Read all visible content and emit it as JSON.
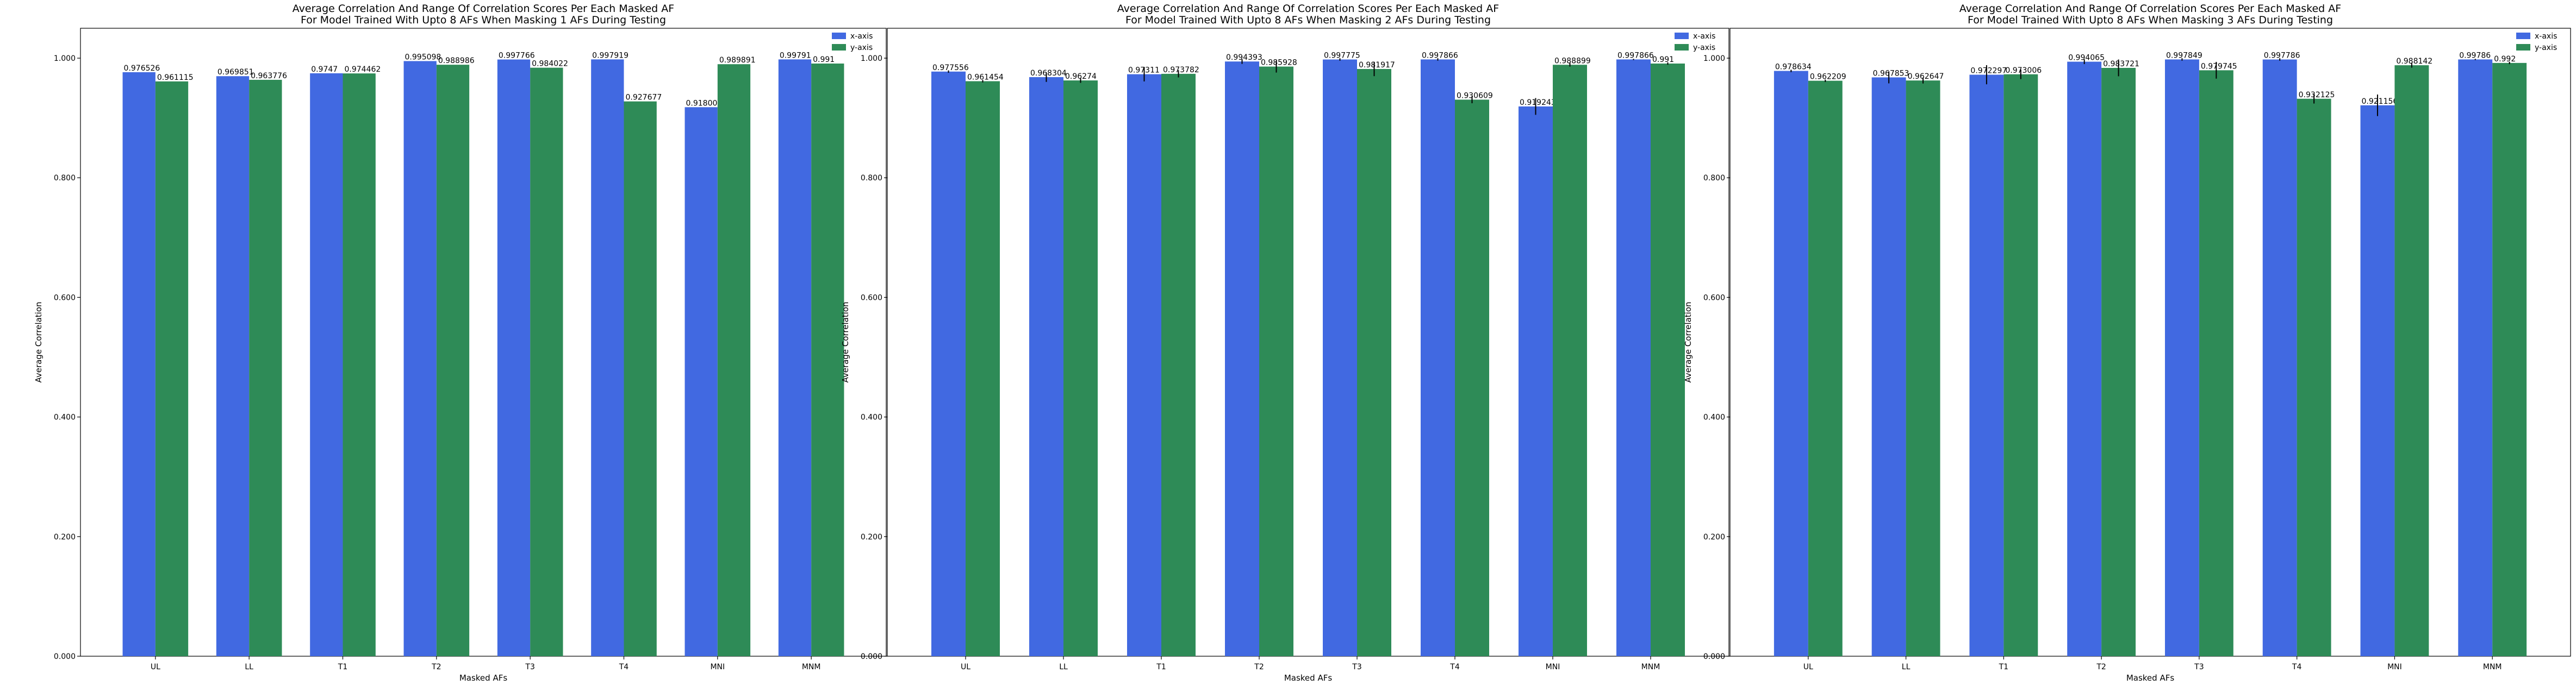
{
  "chart_data": [
    {
      "type": "bar",
      "title": "Average Correlation And Range Of Correlation Scores Per Each Masked AF",
      "subtitle": "For Model Trained With Upto 8 AFs When Masking 1 AFs During Testing",
      "xlabel": "Masked AFs",
      "ylabel": "Average Correlation",
      "ylim": [
        0,
        1.05
      ],
      "yticks": [
        "0.000",
        "0.200",
        "0.400",
        "0.600",
        "0.800",
        "1.000"
      ],
      "categories": [
        "UL",
        "LL",
        "T1",
        "T2",
        "T3",
        "T4",
        "MNI",
        "MNM"
      ],
      "legend": "top-right",
      "grid": false,
      "series": [
        {
          "name": "x-axis",
          "color": "#4169E1",
          "values": [
            0.976526,
            0.969851,
            0.9747,
            0.995098,
            0.997766,
            0.997919,
            0.918004,
            0.99791
          ],
          "labels": [
            "0.976526",
            "0.969851",
            "0.9747",
            "0.995098",
            "0.997766",
            "0.997919",
            "0.918004",
            "0.99791"
          ],
          "errors": [
            0,
            0,
            0,
            0,
            0,
            0,
            0,
            0
          ]
        },
        {
          "name": "y-axis",
          "color": "#2E8B57",
          "values": [
            0.961115,
            0.963776,
            0.974462,
            0.988986,
            0.984022,
            0.927677,
            0.989891,
            0.991
          ],
          "labels": [
            "0.961115",
            "0.963776",
            "0.974462",
            "0.988986",
            "0.984022",
            "0.927677",
            "0.989891",
            "0.991"
          ],
          "errors": [
            0,
            0,
            0,
            0,
            0,
            0,
            0,
            0
          ]
        }
      ]
    },
    {
      "type": "bar",
      "title": "Average Correlation And Range Of Correlation Scores Per Each Masked AF",
      "subtitle": "For Model Trained With Upto 8 AFs When Masking 2 AFs During Testing",
      "xlabel": "Masked AFs",
      "ylabel": "Average Correlation",
      "ylim": [
        0,
        1.05
      ],
      "yticks": [
        "0.000",
        "0.200",
        "0.400",
        "0.600",
        "0.800",
        "1.000"
      ],
      "categories": [
        "UL",
        "LL",
        "T1",
        "T2",
        "T3",
        "T4",
        "MNI",
        "MNM"
      ],
      "legend": "top-right",
      "grid": false,
      "series": [
        {
          "name": "x-axis",
          "color": "#4169E1",
          "values": [
            0.977556,
            0.968304,
            0.97311,
            0.994393,
            0.997775,
            0.997866,
            0.919243,
            0.997866
          ],
          "labels": [
            "0.977556",
            "0.968304",
            "0.97311",
            "0.994393",
            "0.997775",
            "0.997866",
            "0.919243",
            "0.997866"
          ],
          "errors": [
            0.002,
            0.008,
            0.012,
            0.004,
            0.002,
            0.002,
            0.014,
            0.001
          ]
        },
        {
          "name": "y-axis",
          "color": "#2E8B57",
          "values": [
            0.961454,
            0.96274,
            0.973782,
            0.985928,
            0.981917,
            0.930609,
            0.988899,
            0.991
          ],
          "labels": [
            "0.961454",
            "0.96274",
            "0.973782",
            "0.985928",
            "0.981917",
            "0.930609",
            "0.988899",
            "0.991"
          ],
          "errors": [
            0.002,
            0.004,
            0.006,
            0.01,
            0.012,
            0.006,
            0.003,
            0.002
          ]
        }
      ]
    },
    {
      "type": "bar",
      "title": "Average Correlation And Range Of Correlation Scores Per Each Masked AF",
      "subtitle": "For Model Trained With Upto 8 AFs When Masking 3 AFs During Testing",
      "xlabel": "Masked AFs",
      "ylabel": "Average Correlation",
      "ylim": [
        0,
        1.05
      ],
      "yticks": [
        "0.000",
        "0.200",
        "0.400",
        "0.600",
        "0.800",
        "1.000"
      ],
      "categories": [
        "UL",
        "LL",
        "T1",
        "T2",
        "T3",
        "T4",
        "MNI",
        "MNM"
      ],
      "legend": "top-right",
      "grid": false,
      "series": [
        {
          "name": "x-axis",
          "color": "#4169E1",
          "values": [
            0.978634,
            0.967853,
            0.972297,
            0.994065,
            0.997849,
            0.997786,
            0.921156,
            0.99786
          ],
          "labels": [
            "0.978634",
            "0.967853",
            "0.972297",
            "0.994065",
            "0.997849",
            "0.997786",
            "0.921156",
            "0.99786"
          ],
          "errors": [
            0.002,
            0.01,
            0.016,
            0.004,
            0.002,
            0.002,
            0.018,
            0.001
          ]
        },
        {
          "name": "y-axis",
          "color": "#2E8B57",
          "values": [
            0.962209,
            0.962647,
            0.973006,
            0.983721,
            0.979745,
            0.932125,
            0.988142,
            0.992
          ],
          "labels": [
            "0.962209",
            "0.962647",
            "0.973006",
            "0.983721",
            "0.979745",
            "0.932125",
            "0.988142",
            "0.992"
          ],
          "errors": [
            0.002,
            0.005,
            0.008,
            0.014,
            0.014,
            0.008,
            0.004,
            0.002
          ]
        }
      ]
    }
  ]
}
